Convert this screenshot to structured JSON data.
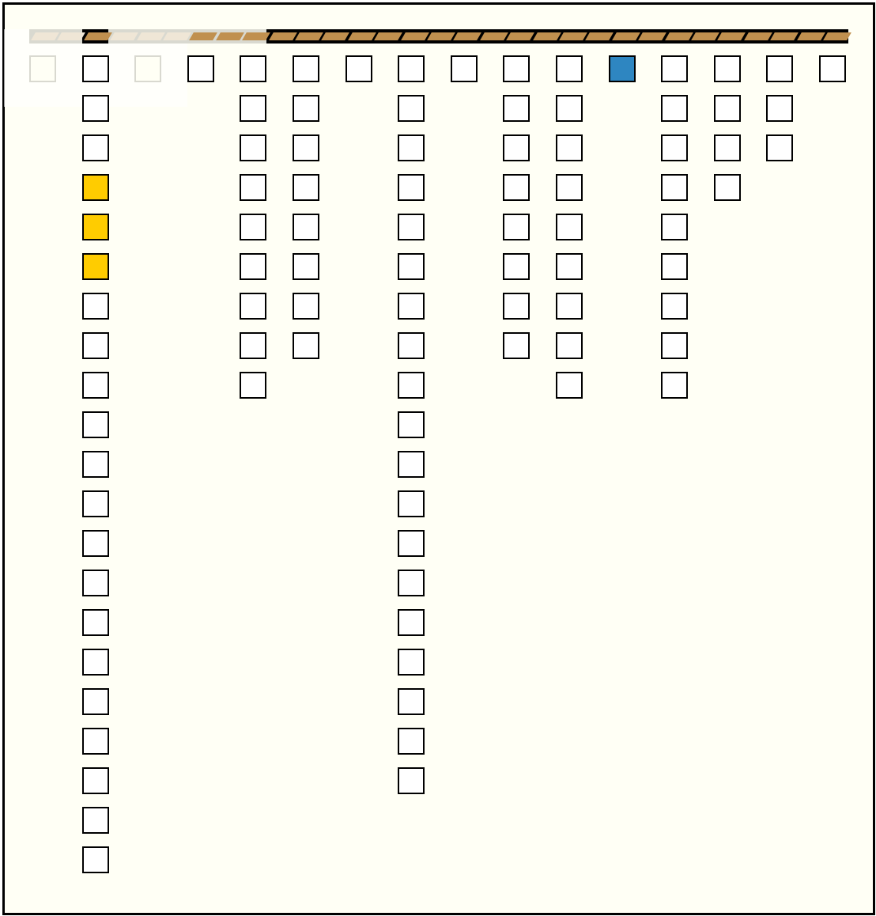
{
  "game": {
    "colors": {
      "board": "#fffff5",
      "bar": "#c0904f",
      "yellow": "#ffcc00",
      "blue": "#2e86c1"
    },
    "faded_columns": [
      0,
      2
    ],
    "columns": [
      {
        "cells": 1
      },
      {
        "cells": 21,
        "highlight": {
          "yellow": [
            3,
            4,
            5
          ]
        }
      },
      {
        "cells": 1
      },
      {
        "cells": 1
      },
      {
        "cells": 9
      },
      {
        "cells": 8
      },
      {
        "cells": 1
      },
      {
        "cells": 19
      },
      {
        "cells": 1
      },
      {
        "cells": 8
      },
      {
        "cells": 9
      },
      {
        "cells": 1,
        "highlight": {
          "blue": [
            0
          ]
        }
      },
      {
        "cells": 9
      },
      {
        "cells": 4
      },
      {
        "cells": 3
      },
      {
        "cells": 1
      }
    ]
  }
}
